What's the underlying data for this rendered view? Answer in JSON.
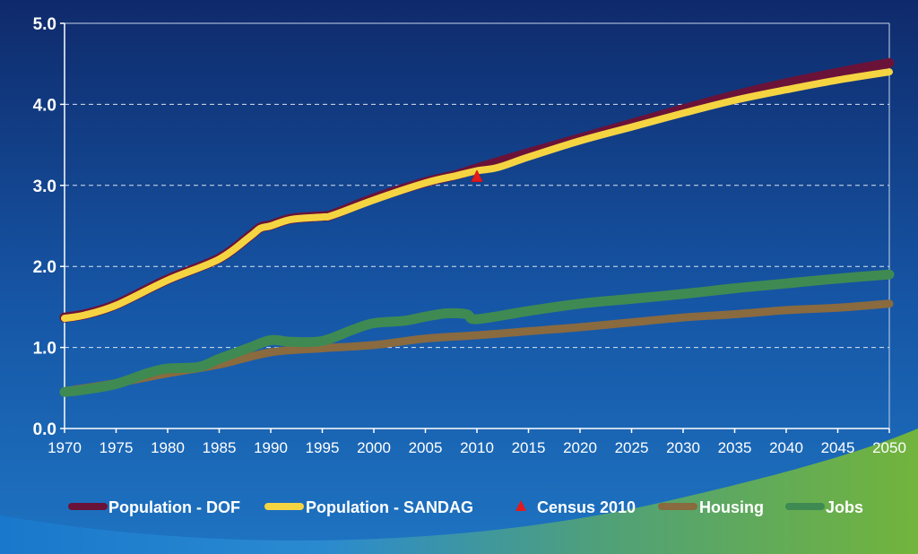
{
  "chart_data": {
    "type": "line",
    "title": "",
    "xlabel": "",
    "ylabel": "",
    "xlim": [
      1970,
      2050
    ],
    "ylim": [
      0,
      5
    ],
    "y_ticks": [
      "0.0",
      "1.0",
      "2.0",
      "3.0",
      "4.0",
      "5.0"
    ],
    "x_ticks": [
      "1970",
      "1975",
      "1980",
      "1985",
      "1990",
      "1995",
      "2000",
      "2005",
      "2010",
      "2015",
      "2020",
      "2025",
      "2030",
      "2035",
      "2040",
      "2045",
      "2050"
    ],
    "grid": "horizontal dashed",
    "legend_position": "bottom",
    "series": [
      {
        "name": "Population - DOF",
        "color": "#6b1238",
        "x": [
          1970,
          1972,
          1975,
          1980,
          1985,
          1988,
          1989,
          1990,
          1992,
          1995,
          1996,
          2000,
          2005,
          2008,
          2010,
          2015,
          2020,
          2025,
          2030,
          2035,
          2040,
          2045,
          2050
        ],
        "values": [
          1.37,
          1.41,
          1.53,
          1.84,
          2.1,
          2.38,
          2.48,
          2.51,
          2.59,
          2.62,
          2.64,
          2.84,
          3.04,
          3.13,
          3.21,
          3.4,
          3.58,
          3.76,
          3.94,
          4.11,
          4.26,
          4.39,
          4.51
        ]
      },
      {
        "name": "Population - SANDAG",
        "color": "#f5d442",
        "x": [
          1970,
          1972,
          1975,
          1980,
          1985,
          1988,
          1989,
          1990,
          1992,
          1995,
          1996,
          2000,
          2005,
          2008,
          2010,
          2012,
          2015,
          2020,
          2025,
          2030,
          2035,
          2040,
          2045,
          2050
        ],
        "values": [
          1.36,
          1.4,
          1.52,
          1.83,
          2.09,
          2.37,
          2.47,
          2.5,
          2.58,
          2.61,
          2.63,
          2.82,
          3.03,
          3.12,
          3.18,
          3.22,
          3.35,
          3.55,
          3.72,
          3.89,
          4.05,
          4.18,
          4.3,
          4.4
        ]
      },
      {
        "name": "Census 2010",
        "color": "#e31a1c",
        "marker": "triangle",
        "x": [
          2010
        ],
        "values": [
          3.1
        ]
      },
      {
        "name": "Housing",
        "color": "#8a6a3f",
        "x": [
          1970,
          1975,
          1980,
          1985,
          1990,
          1995,
          2000,
          2005,
          2010,
          2015,
          2020,
          2025,
          2030,
          2035,
          2040,
          2045,
          2050
        ],
        "values": [
          0.46,
          0.56,
          0.68,
          0.79,
          0.94,
          0.99,
          1.03,
          1.11,
          1.15,
          1.2,
          1.25,
          1.31,
          1.37,
          1.41,
          1.46,
          1.49,
          1.54
        ]
      },
      {
        "name": "Jobs",
        "color": "#3f8a52",
        "x": [
          1970,
          1972,
          1975,
          1978,
          1980,
          1983,
          1985,
          1988,
          1990,
          1992,
          1995,
          1998,
          2000,
          2003,
          2005,
          2007,
          2009,
          2010,
          2015,
          2020,
          2025,
          2030,
          2035,
          2040,
          2045,
          2050
        ],
        "values": [
          0.45,
          0.48,
          0.55,
          0.68,
          0.74,
          0.76,
          0.86,
          1.0,
          1.09,
          1.07,
          1.08,
          1.22,
          1.3,
          1.33,
          1.38,
          1.42,
          1.41,
          1.35,
          1.45,
          1.54,
          1.6,
          1.66,
          1.73,
          1.79,
          1.85,
          1.9
        ]
      }
    ]
  },
  "colors": {
    "background_top": "#0f2c6f",
    "background_bottom": "#1e6fb9",
    "accent_green": "#6fb23f",
    "text": "#ffffff",
    "grid": "#ffffff"
  }
}
